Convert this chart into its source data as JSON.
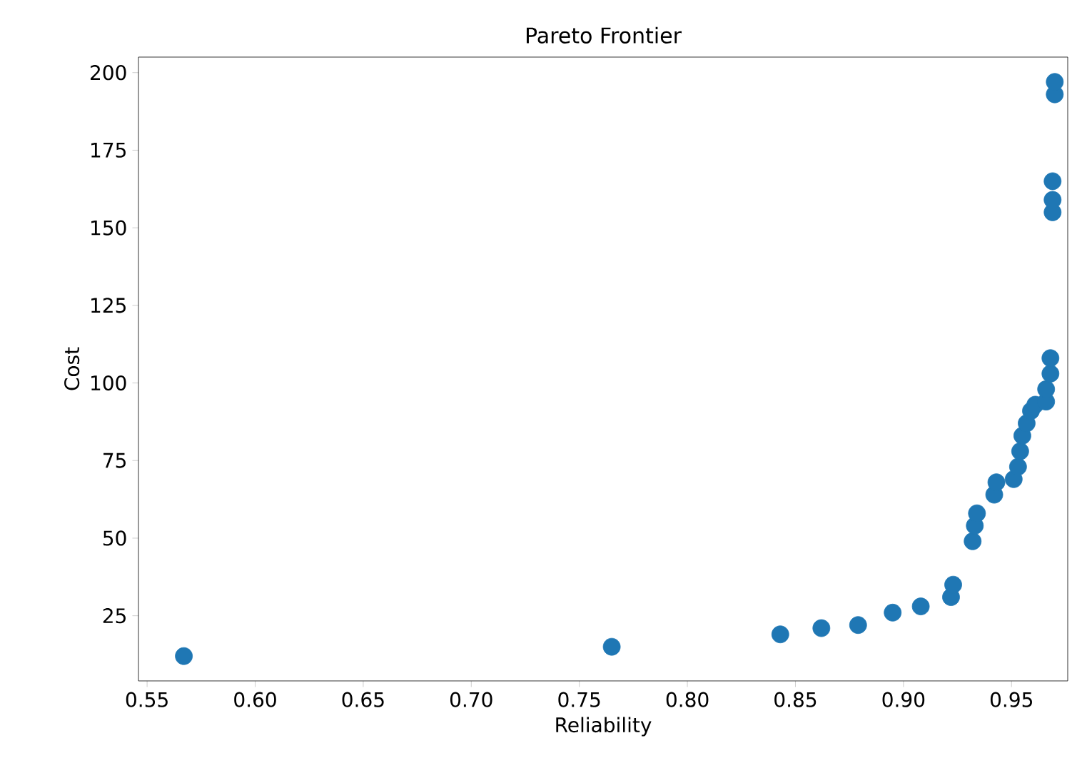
{
  "chart_data": {
    "type": "scatter",
    "title": "Pareto Frontier",
    "xlabel": "Reliability",
    "ylabel": "Cost",
    "color": "#1f77b4",
    "x": [
      0.567,
      0.765,
      0.843,
      0.862,
      0.879,
      0.895,
      0.908,
      0.922,
      0.923,
      0.932,
      0.933,
      0.934,
      0.942,
      0.943,
      0.951,
      0.953,
      0.954,
      0.955,
      0.957,
      0.959,
      0.961,
      0.966,
      0.966,
      0.968,
      0.968,
      0.969,
      0.969,
      0.969,
      0.97,
      0.97
    ],
    "values": [
      12,
      15,
      19,
      21,
      22,
      26,
      28,
      31,
      35,
      49,
      54,
      58,
      64,
      68,
      69,
      73,
      78,
      83,
      87,
      91,
      93,
      94,
      98,
      103,
      108,
      155,
      159,
      165,
      193,
      197
    ],
    "xlim": [
      0.546,
      0.976
    ],
    "ylim": [
      4,
      205
    ],
    "xticks": [
      {
        "value": 0.55,
        "label": "0.55"
      },
      {
        "value": 0.6,
        "label": "0.60"
      },
      {
        "value": 0.65,
        "label": "0.65"
      },
      {
        "value": 0.7,
        "label": "0.70"
      },
      {
        "value": 0.75,
        "label": "0.75"
      },
      {
        "value": 0.8,
        "label": "0.80"
      },
      {
        "value": 0.85,
        "label": "0.85"
      },
      {
        "value": 0.9,
        "label": "0.90"
      },
      {
        "value": 0.95,
        "label": "0.95"
      }
    ],
    "yticks": [
      25,
      50,
      75,
      100,
      125,
      150,
      175,
      200
    ],
    "grid": false
  }
}
